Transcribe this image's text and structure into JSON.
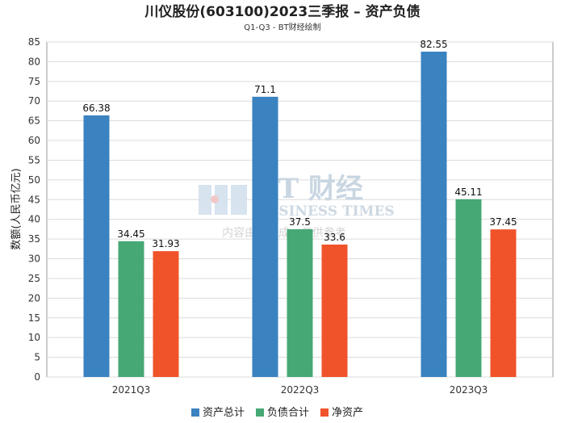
{
  "chart_data": {
    "type": "bar",
    "title": "川仪股份(603100)2023三季报 – 资产负债",
    "subtitle": "Q1-Q3 - BT财经绘制",
    "ylabel": "数额(人民币亿元)",
    "xlabel": "",
    "ylim": [
      0,
      85
    ],
    "yticks": [
      0,
      5,
      10,
      15,
      20,
      25,
      30,
      35,
      40,
      45,
      50,
      55,
      60,
      65,
      70,
      75,
      80,
      85
    ],
    "grid": true,
    "legend_position": "bottom",
    "categories": [
      "2021Q3",
      "2022Q3",
      "2023Q3"
    ],
    "series": [
      {
        "name": "资产总计",
        "color": "#3a82c0",
        "values": [
          66.38,
          71.1,
          82.55
        ]
      },
      {
        "name": "负债合计",
        "color": "#46a874",
        "values": [
          34.45,
          37.5,
          45.11
        ]
      },
      {
        "name": "净资产",
        "color": "#f0532a",
        "values": [
          31.93,
          33.6,
          37.45
        ]
      }
    ]
  },
  "watermark": {
    "logo_text": "BT 财经",
    "sub_text": "BUSINESS TIMES",
    "note": "内容由AI生成，仅供参考"
  }
}
